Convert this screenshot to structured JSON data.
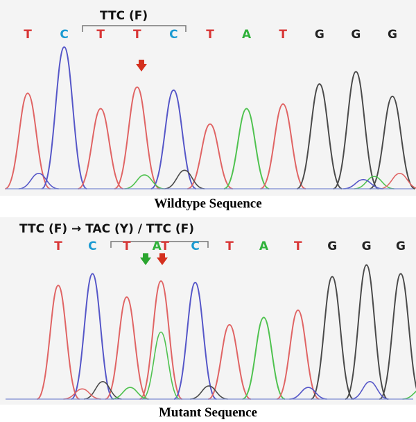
{
  "colors": {
    "T": "#d83535",
    "C": "#1a9ad2",
    "A": "#2fb13a",
    "G": "#222222",
    "trace_T": "#e06464",
    "trace_C": "#5556c8",
    "trace_A": "#4fc24f",
    "trace_G": "#4a4a4a",
    "arrow_red": "#d4301e",
    "arrow_green": "#2aa52e"
  },
  "wildtype": {
    "codon_label": "TTC (F)",
    "bases": [
      "T",
      "C",
      "T",
      "T",
      "C",
      "T",
      "A",
      "T",
      "G",
      "G",
      "G"
    ],
    "peak_heights": [
      0.62,
      0.92,
      0.52,
      0.66,
      0.64,
      0.42,
      0.52,
      0.55,
      0.68,
      0.76,
      0.6
    ],
    "secondary_peaks": [
      {
        "base": "C",
        "pos": 0.3,
        "h": 0.1
      },
      {
        "base": "A",
        "pos": 3.2,
        "h": 0.09
      },
      {
        "base": "G",
        "pos": 4.3,
        "h": 0.12
      },
      {
        "base": "A",
        "pos": 9.5,
        "h": 0.08
      },
      {
        "base": "T",
        "pos": 10.2,
        "h": 0.1
      },
      {
        "base": "C",
        "pos": 9.2,
        "h": 0.06
      }
    ],
    "caption": "Wildtype Sequence"
  },
  "mutant": {
    "header_label": "TTC (F) → TAC (Y) / TTC (F)",
    "bases": [
      "T",
      "C",
      "T",
      "AT",
      "C",
      "T",
      "A",
      "T",
      "G",
      "G",
      "G"
    ],
    "peak_heights": [
      0.78,
      0.86,
      0.7,
      0.81,
      0.8,
      0.51,
      0.56,
      0.61,
      0.84,
      0.92,
      0.86
    ],
    "secondary_peaks": [
      {
        "base": "A",
        "pos": 3.0,
        "h": 0.46
      },
      {
        "base": "G",
        "pos": 1.3,
        "h": 0.12
      },
      {
        "base": "A",
        "pos": 2.1,
        "h": 0.08
      },
      {
        "base": "G",
        "pos": 4.4,
        "h": 0.09
      },
      {
        "base": "C",
        "pos": 7.3,
        "h": 0.08
      },
      {
        "base": "C",
        "pos": 9.1,
        "h": 0.12
      },
      {
        "base": "T",
        "pos": 0.7,
        "h": 0.07
      },
      {
        "base": "A",
        "pos": 10.6,
        "h": 0.07
      }
    ],
    "caption": "Mutant Sequence"
  }
}
